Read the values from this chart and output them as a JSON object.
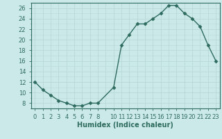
{
  "x_positions": [
    0,
    1,
    2,
    3,
    4,
    5,
    6,
    7,
    8,
    10,
    11,
    12,
    13,
    14,
    15,
    16,
    17,
    18,
    19,
    20,
    21,
    22,
    23
  ],
  "y": [
    12,
    10.5,
    9.5,
    8.5,
    8,
    7.5,
    7.5,
    8,
    8,
    11,
    19,
    21,
    23,
    23,
    24,
    25,
    26.5,
    26.5,
    25,
    24,
    22.5,
    19,
    16
  ],
  "line_color": "#2d6b5e",
  "bg_color": "#cce9e9",
  "grid_color": "#b8d8d8",
  "xlabel": "Humidex (Indice chaleur)",
  "ytick_positions": [
    8,
    10,
    12,
    14,
    16,
    18,
    20,
    22,
    24,
    26
  ],
  "ytick_labels": [
    "8",
    "10",
    "12",
    "14",
    "16",
    "18",
    "20",
    "22",
    "24",
    "26"
  ],
  "xtick_positions": [
    0,
    1,
    2,
    3,
    4,
    5,
    6,
    7,
    8,
    9,
    10,
    11,
    12,
    13,
    14,
    15,
    16,
    17,
    18,
    19,
    20,
    21,
    22,
    23
  ],
  "xtick_labels": [
    "0",
    "1",
    "2",
    "3",
    "4",
    "5",
    "6",
    "7",
    "8",
    "",
    "10",
    "11",
    "12",
    "13",
    "14",
    "15",
    "16",
    "17",
    "18",
    "19",
    "20",
    "21",
    "22",
    "23"
  ],
  "ylim": [
    7.0,
    27.0
  ],
  "xlim": [
    -0.5,
    23.5
  ]
}
